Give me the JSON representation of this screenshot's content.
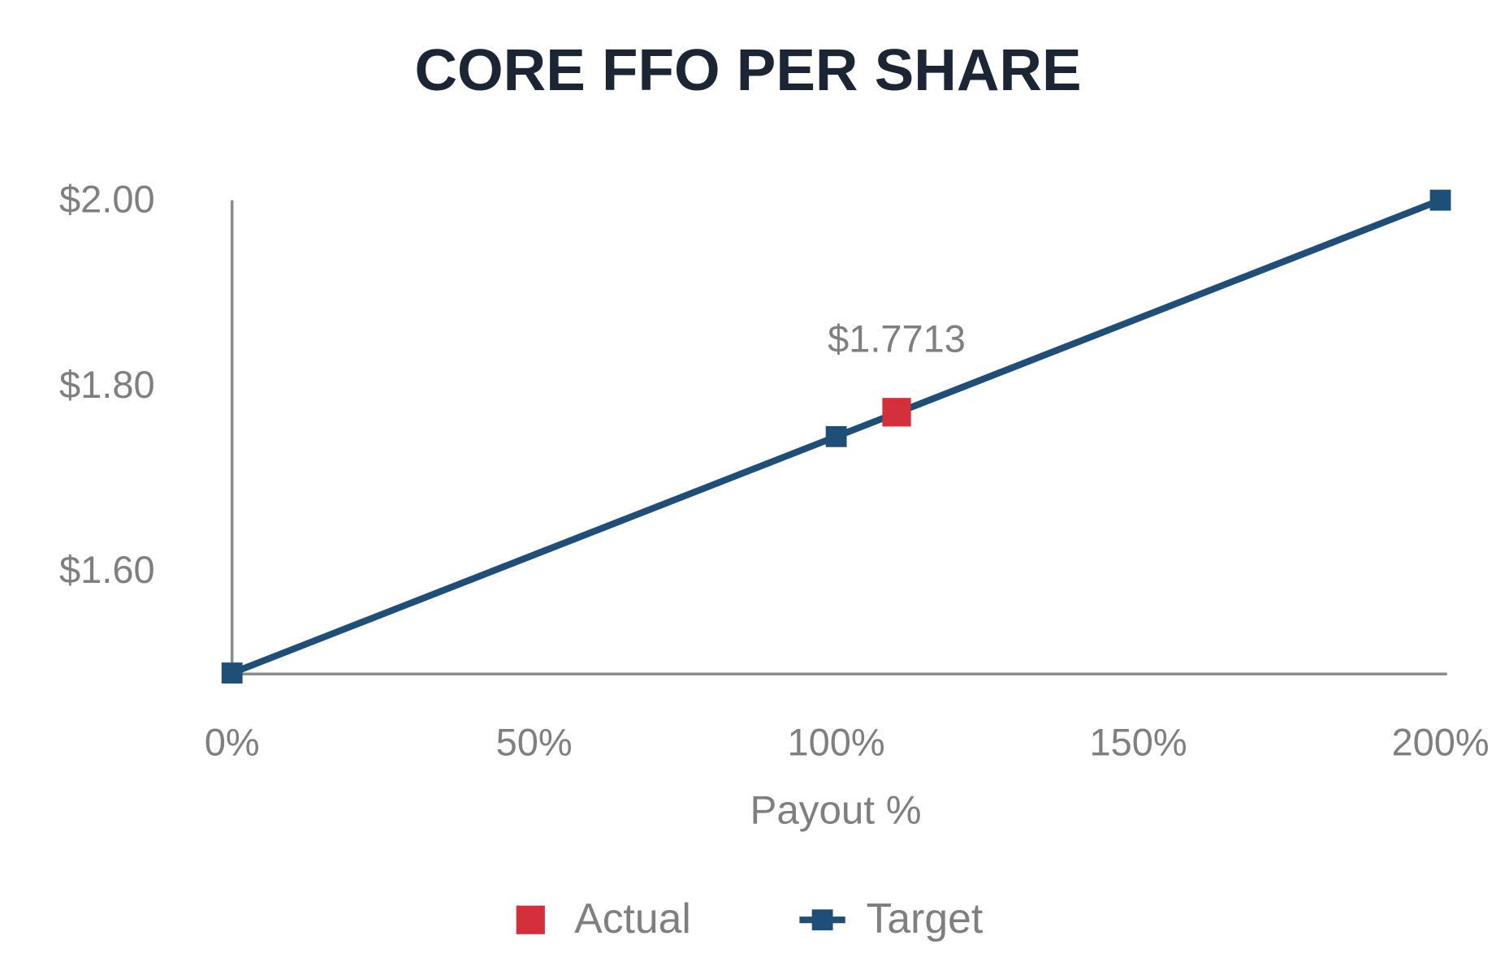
{
  "chart_data": {
    "type": "line",
    "title": "CORE FFO PER SHARE",
    "x_label": "Payout %",
    "xlim": [
      0,
      200
    ],
    "xticks": [
      {
        "value": 0,
        "label": "0%"
      },
      {
        "value": 50,
        "label": "50%"
      },
      {
        "value": 100,
        "label": "100%"
      },
      {
        "value": 150,
        "label": "150%"
      },
      {
        "value": 200,
        "label": "200%"
      }
    ],
    "ylim": [
      1.49,
      2.0
    ],
    "yticks": [
      {
        "value": 1.6,
        "label": "$1.60"
      },
      {
        "value": 1.8,
        "label": "$1.80"
      },
      {
        "value": 2.0,
        "label": "$2.00"
      }
    ],
    "grid": false,
    "legend": "bottom",
    "series": [
      {
        "name": "Actual",
        "color": "#d3303b",
        "x": [
          110
        ],
        "values": [
          1.7713
        ],
        "value_labels": [
          "$1.7713"
        ]
      },
      {
        "name": "Target",
        "color": "#1f4e79",
        "x": [
          0,
          100,
          200
        ],
        "values": [
          1.49,
          1.745,
          2.0
        ]
      }
    ]
  }
}
